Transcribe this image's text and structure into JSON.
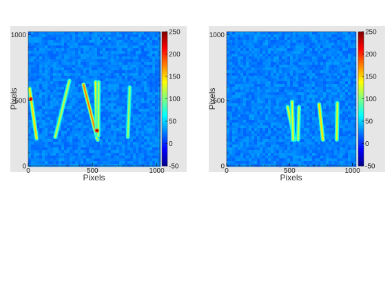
{
  "chart_data": [
    {
      "type": "heatmap",
      "title": "",
      "xlabel": "Pixels",
      "ylabel": "Pixels",
      "xlim": [
        0,
        1024
      ],
      "ylim": [
        0,
        1024
      ],
      "x_ticks": [
        "0",
        "500",
        "1000"
      ],
      "y_ticks": [
        "0",
        "500",
        "1000"
      ],
      "colorbar": {
        "range": [
          -50,
          250
        ],
        "ticks": [
          "-50",
          "0",
          "50",
          "100",
          "150",
          "200",
          "250"
        ]
      },
      "colormap": [
        "#00008f",
        "#0000ff",
        "#0080ff",
        "#00ffff",
        "#80ff80",
        "#ffff00",
        "#ff8000",
        "#ff0000",
        "#800000"
      ],
      "background_level": 25,
      "tracks": [
        {
          "x1": 10,
          "y1": 590,
          "x2": 65,
          "y2": 210,
          "peak": 150
        },
        {
          "x1": 210,
          "y1": 220,
          "x2": 320,
          "y2": 650,
          "peak": 120
        },
        {
          "x1": 430,
          "y1": 620,
          "x2": 540,
          "y2": 200,
          "peak": 180
        },
        {
          "x1": 525,
          "y1": 640,
          "x2": 535,
          "y2": 210,
          "peak": 140
        },
        {
          "x1": 548,
          "y1": 640,
          "x2": 545,
          "y2": 230,
          "peak": 120
        },
        {
          "x1": 790,
          "y1": 600,
          "x2": 775,
          "y2": 220,
          "peak": 110
        }
      ],
      "hotspots": [
        {
          "x": 20,
          "y": 510,
          "value": 230
        },
        {
          "x": 535,
          "y": 270,
          "value": 240
        }
      ]
    },
    {
      "type": "heatmap",
      "title": "",
      "xlabel": "Pixels",
      "ylabel": "Pixels",
      "xlim": [
        0,
        1024
      ],
      "ylim": [
        0,
        1024
      ],
      "x_ticks": [
        "0",
        "500",
        "1000"
      ],
      "y_ticks": [
        "0",
        "500",
        "1000"
      ],
      "colorbar": {
        "range": [
          -50,
          250
        ],
        "ticks": [
          "-50",
          "0",
          "50",
          "100",
          "150",
          "200",
          "250"
        ]
      },
      "colormap": [
        "#00008f",
        "#0000ff",
        "#0080ff",
        "#00ffff",
        "#80ff80",
        "#ffff00",
        "#ff8000",
        "#ff0000",
        "#800000"
      ],
      "background_level": 25,
      "tracks": [
        {
          "x1": 485,
          "y1": 450,
          "x2": 540,
          "y2": 200,
          "peak": 130
        },
        {
          "x1": 520,
          "y1": 490,
          "x2": 528,
          "y2": 200,
          "peak": 130
        },
        {
          "x1": 575,
          "y1": 450,
          "x2": 568,
          "y2": 200,
          "peak": 120
        },
        {
          "x1": 735,
          "y1": 470,
          "x2": 765,
          "y2": 200,
          "peak": 150
        },
        {
          "x1": 880,
          "y1": 480,
          "x2": 875,
          "y2": 200,
          "peak": 130
        }
      ],
      "hotspots": []
    }
  ]
}
